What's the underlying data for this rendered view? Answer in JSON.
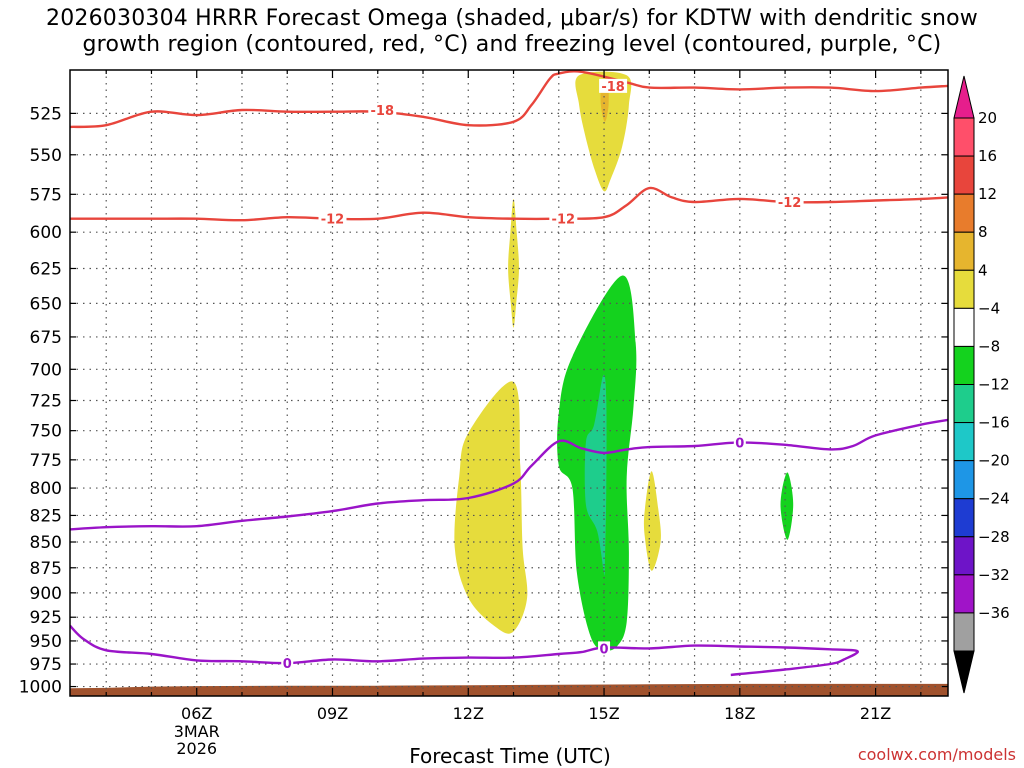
{
  "title_line1": "2026030304 HRRR Forecast Omega (shaded, μbar/s) for KDTW with dendritic snow",
  "title_line2": "growth region (contoured, red, °C) and freezing level (contoured, purple, °C)",
  "xlabel": "Forecast Time (UTC)",
  "credit": "coolwx.com/models",
  "colors": {
    "dgz": "#e8453c",
    "freezing": "#9a14c8",
    "ground": "#a0522d",
    "grid": "#555555"
  },
  "chart_data": {
    "type": "heatmap",
    "x_range_hours": [
      3.2,
      22.6
    ],
    "y_range_hpa": [
      500,
      1005
    ],
    "pressure_ticks": [
      525,
      550,
      575,
      600,
      625,
      650,
      675,
      700,
      725,
      750,
      775,
      800,
      825,
      850,
      875,
      900,
      925,
      950,
      975,
      1000
    ],
    "time_ticks": [
      {
        "hour": 6,
        "label": "06Z",
        "date1": "3MAR",
        "date2": "2026"
      },
      {
        "hour": 9,
        "label": "09Z"
      },
      {
        "hour": 12,
        "label": "12Z"
      },
      {
        "hour": 15,
        "label": "15Z"
      },
      {
        "hour": 18,
        "label": "18Z"
      },
      {
        "hour": 21,
        "label": "21Z"
      }
    ],
    "colorbar": [
      {
        "label": "20",
        "color": "#ff4f6a"
      },
      {
        "label": "16",
        "color": "#e8453c"
      },
      {
        "label": "12",
        "color": "#e87c2c"
      },
      {
        "label": "8",
        "color": "#e6b52e"
      },
      {
        "label": "4",
        "color": "#e6dc3c"
      },
      {
        "label": "−4",
        "color": "#ffffff"
      },
      {
        "label": "−8",
        "color": "#14d21e"
      },
      {
        "label": "−12",
        "color": "#1ecd8c"
      },
      {
        "label": "−16",
        "color": "#1ec8c8"
      },
      {
        "label": "−20",
        "color": "#1e96e6"
      },
      {
        "label": "−24",
        "color": "#1e3cd2"
      },
      {
        "label": "−28",
        "color": "#6e14c8"
      },
      {
        "label": "−32",
        "color": "#a014c8"
      },
      {
        "label": "−36",
        "color": "#a0a0a0"
      }
    ],
    "colorbar_top_color": "#e61e8c",
    "colorbar_bottom_color": "#000000",
    "shaded_regions": [
      {
        "name": "yellow-upper-15z",
        "color": "#e6dc3c",
        "points": [
          [
            14.45,
            503
          ],
          [
            15.5,
            503
          ],
          [
            15.55,
            520
          ],
          [
            15.4,
            545
          ],
          [
            15.15,
            565
          ],
          [
            15.0,
            573
          ],
          [
            14.8,
            560
          ],
          [
            14.6,
            540
          ],
          [
            14.45,
            520
          ]
        ]
      },
      {
        "name": "orange-upper-15z",
        "color": "#e6b52e",
        "points": [
          [
            14.95,
            506
          ],
          [
            15.08,
            506
          ],
          [
            15.1,
            520
          ],
          [
            15.02,
            530
          ],
          [
            14.93,
            520
          ]
        ]
      },
      {
        "name": "yellow-624-13z",
        "color": "#e6dc3c",
        "points": [
          [
            13.0,
            578
          ],
          [
            13.07,
            600
          ],
          [
            13.12,
            625
          ],
          [
            13.06,
            650
          ],
          [
            13.0,
            668
          ],
          [
            12.94,
            650
          ],
          [
            12.88,
            625
          ],
          [
            12.93,
            600
          ]
        ]
      },
      {
        "name": "yellow-mid-12z",
        "color": "#e6dc3c",
        "points": [
          [
            12.0,
            752
          ],
          [
            13.0,
            710
          ],
          [
            13.15,
            780
          ],
          [
            13.2,
            855
          ],
          [
            13.3,
            905
          ],
          [
            13.0,
            940
          ],
          [
            12.6,
            935
          ],
          [
            12.0,
            905
          ],
          [
            11.7,
            855
          ],
          [
            11.8,
            790
          ]
        ]
      },
      {
        "name": "green-15z",
        "color": "#14d21e",
        "points": [
          [
            15.4,
            630
          ],
          [
            15.7,
            680
          ],
          [
            15.65,
            730
          ],
          [
            15.5,
            790
          ],
          [
            15.55,
            860
          ],
          [
            15.5,
            930
          ],
          [
            15.3,
            955
          ],
          [
            15.0,
            960
          ],
          [
            14.7,
            945
          ],
          [
            14.4,
            880
          ],
          [
            14.3,
            800
          ],
          [
            14.0,
            780
          ],
          [
            14.0,
            735
          ],
          [
            14.3,
            690
          ]
        ]
      },
      {
        "name": "teal-15z",
        "color": "#1ecd8c",
        "points": [
          [
            14.98,
            705
          ],
          [
            15.05,
            725
          ],
          [
            15.05,
            800
          ],
          [
            15.02,
            870
          ],
          [
            15.0,
            880
          ],
          [
            14.85,
            840
          ],
          [
            14.6,
            815
          ],
          [
            14.6,
            760
          ],
          [
            14.78,
            745
          ]
        ]
      },
      {
        "name": "yellow-16z",
        "color": "#e6dc3c",
        "points": [
          [
            16.05,
            785
          ],
          [
            16.2,
            820
          ],
          [
            16.25,
            850
          ],
          [
            16.05,
            878
          ],
          [
            15.9,
            845
          ],
          [
            15.9,
            820
          ]
        ]
      },
      {
        "name": "green-19z",
        "color": "#14d21e",
        "points": [
          [
            19.05,
            786
          ],
          [
            19.18,
            815
          ],
          [
            19.05,
            848
          ],
          [
            18.9,
            815
          ]
        ]
      }
    ],
    "contours": [
      {
        "kind": "dgz",
        "label": "-18",
        "label_at": [
          [
            10.1,
            523
          ],
          [
            15.2,
            509
          ]
        ],
        "points": [
          [
            3.2,
            533
          ],
          [
            4.0,
            532
          ],
          [
            5.0,
            524
          ],
          [
            6.0,
            526
          ],
          [
            7.0,
            523
          ],
          [
            8.0,
            524
          ],
          [
            9.0,
            524
          ],
          [
            10.0,
            524
          ],
          [
            11.0,
            527
          ],
          [
            12.0,
            532
          ],
          [
            13.0,
            530
          ],
          [
            13.4,
            520
          ],
          [
            13.8,
            505
          ],
          [
            14.0,
            502
          ],
          [
            14.5,
            501
          ],
          [
            15.5,
            507
          ],
          [
            16.0,
            510
          ],
          [
            17.0,
            510
          ],
          [
            18.0,
            511
          ],
          [
            19.0,
            510
          ],
          [
            20.0,
            510
          ],
          [
            21.0,
            512
          ],
          [
            22.0,
            510
          ],
          [
            22.6,
            509
          ]
        ]
      },
      {
        "kind": "dgz",
        "label": "-12",
        "label_at": [
          [
            9.0,
            591
          ],
          [
            14.1,
            591
          ],
          [
            19.1,
            580
          ]
        ],
        "points": [
          [
            3.2,
            591
          ],
          [
            4.0,
            591
          ],
          [
            5.0,
            591
          ],
          [
            6.0,
            591
          ],
          [
            7.0,
            592
          ],
          [
            8.0,
            590
          ],
          [
            9.0,
            591
          ],
          [
            10.0,
            591
          ],
          [
            11.0,
            587
          ],
          [
            12.0,
            590
          ],
          [
            13.0,
            591
          ],
          [
            14.0,
            591
          ],
          [
            15.0,
            590
          ],
          [
            15.5,
            582
          ],
          [
            16.0,
            571
          ],
          [
            16.5,
            577
          ],
          [
            17.0,
            580
          ],
          [
            18.0,
            578
          ],
          [
            19.0,
            580
          ],
          [
            20.0,
            580
          ],
          [
            21.0,
            579
          ],
          [
            22.0,
            578
          ],
          [
            22.6,
            577
          ]
        ]
      },
      {
        "kind": "freezing",
        "label": "0",
        "label_at": [
          [
            18.0,
            760
          ]
        ],
        "points": [
          [
            3.2,
            838
          ],
          [
            4.0,
            836
          ],
          [
            5.0,
            835
          ],
          [
            6.0,
            835
          ],
          [
            7.0,
            830
          ],
          [
            8.0,
            826
          ],
          [
            9.0,
            821
          ],
          [
            10.0,
            814
          ],
          [
            11.0,
            811
          ],
          [
            12.0,
            809
          ],
          [
            13.0,
            796
          ],
          [
            13.4,
            780
          ],
          [
            14.0,
            759
          ],
          [
            14.5,
            765
          ],
          [
            15.0,
            769
          ],
          [
            15.5,
            766
          ],
          [
            16.0,
            764
          ],
          [
            17.0,
            763
          ],
          [
            18.0,
            760
          ],
          [
            19.0,
            762
          ],
          [
            20.0,
            766
          ],
          [
            20.5,
            763
          ],
          [
            21.0,
            754
          ],
          [
            22.0,
            745
          ],
          [
            22.6,
            741
          ]
        ]
      },
      {
        "kind": "freezing",
        "label": "0",
        "label_at": [
          [
            8.0,
            974
          ],
          [
            15.0,
            958
          ]
        ],
        "points": [
          [
            3.2,
            934
          ],
          [
            3.5,
            948
          ],
          [
            4.0,
            960
          ],
          [
            5.0,
            964
          ],
          [
            6.0,
            971
          ],
          [
            7.0,
            972
          ],
          [
            8.0,
            974
          ],
          [
            9.0,
            970
          ],
          [
            10.0,
            972
          ],
          [
            11.0,
            969
          ],
          [
            12.0,
            968
          ],
          [
            13.0,
            968
          ],
          [
            14.0,
            964
          ],
          [
            14.5,
            962
          ],
          [
            15.0,
            957
          ],
          [
            16.0,
            958
          ],
          [
            17.0,
            955
          ],
          [
            18.0,
            956
          ],
          [
            19.0,
            957
          ],
          [
            20.0,
            959
          ],
          [
            20.6,
            961
          ],
          [
            20.3,
            970
          ],
          [
            20.0,
            975
          ],
          [
            19.0,
            981
          ],
          [
            18.0,
            986
          ],
          [
            17.8,
            987
          ]
        ]
      }
    ],
    "ground_profile": [
      [
        3.2,
        1002
      ],
      [
        4.0,
        1001.5
      ],
      [
        5.0,
        1000
      ],
      [
        6.0,
        999.5
      ],
      [
        8.0,
        999
      ],
      [
        10.0,
        999
      ],
      [
        12.0,
        998.5
      ],
      [
        14.0,
        998
      ],
      [
        16.0,
        997.5
      ],
      [
        18.0,
        997
      ],
      [
        20.0,
        997
      ],
      [
        22.6,
        997
      ]
    ]
  }
}
